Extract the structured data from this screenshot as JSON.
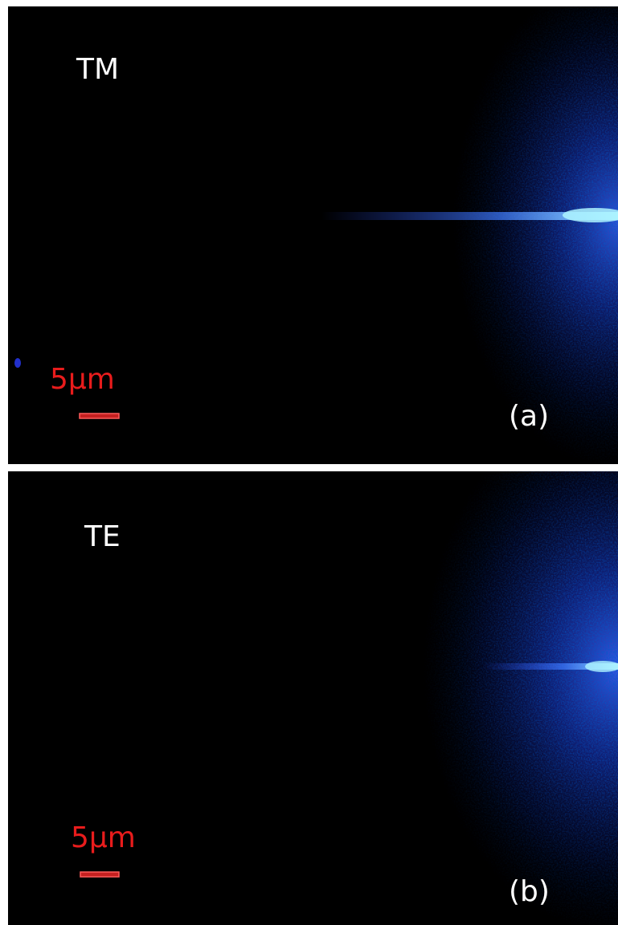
{
  "panels": [
    {
      "mode": "TM",
      "scale": "5μm",
      "label": "(a)"
    },
    {
      "mode": "TE",
      "scale": "5μm",
      "label": "(b)"
    }
  ]
}
